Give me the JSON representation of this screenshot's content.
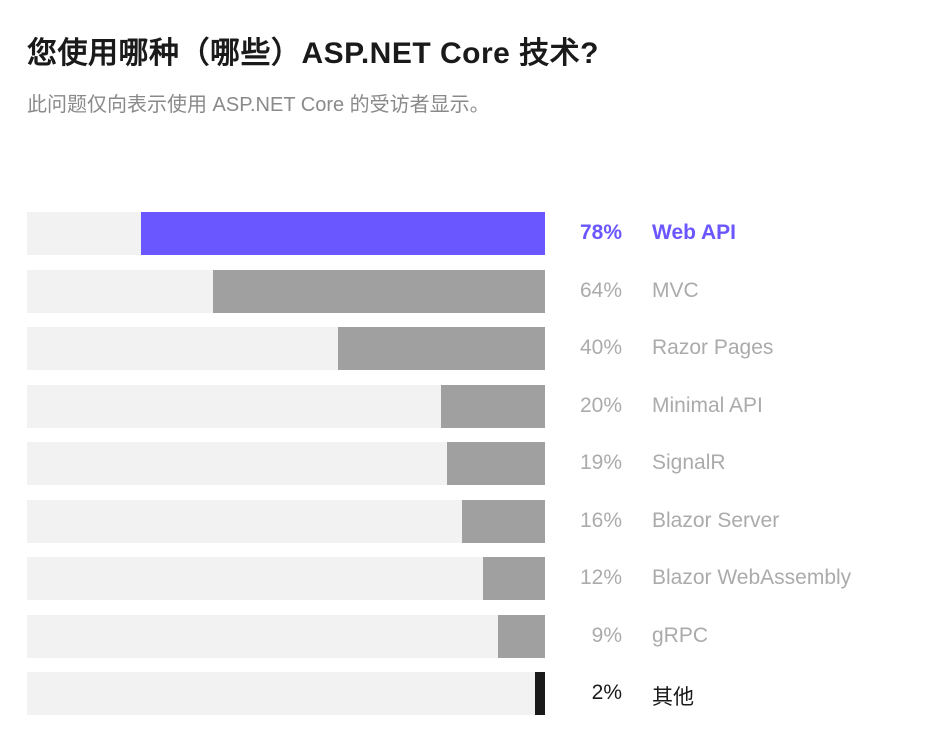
{
  "header": {
    "title": "您使用哪种（哪些）ASP.NET Core 技术?",
    "subtitle": "此问题仅向表示使用 ASP.NET Core 的受访者显示。"
  },
  "colors": {
    "highlight": "#6b57ff",
    "default": "#a0a0a0",
    "other": "#1a1a1a",
    "track": "#f2f2f2"
  },
  "chart_data": {
    "type": "bar",
    "orientation": "horizontal",
    "title": "您使用哪种（哪些）ASP.NET Core 技术?",
    "subtitle": "此问题仅向表示使用 ASP.NET Core 的受访者显示。",
    "xlim": [
      0,
      100
    ],
    "unit": "%",
    "categories": [
      "Web API",
      "MVC",
      "Razor Pages",
      "Minimal API",
      "SignalR",
      "Blazor Server",
      "Blazor WebAssembly",
      "gRPC",
      "其他"
    ],
    "values": [
      78,
      64,
      40,
      20,
      19,
      16,
      12,
      9,
      2
    ],
    "value_labels": [
      "78%",
      "64%",
      "40%",
      "20%",
      "19%",
      "16%",
      "12%",
      "9%",
      "2%"
    ],
    "styles": [
      "highlight",
      "default",
      "default",
      "default",
      "default",
      "default",
      "default",
      "default",
      "other"
    ]
  }
}
